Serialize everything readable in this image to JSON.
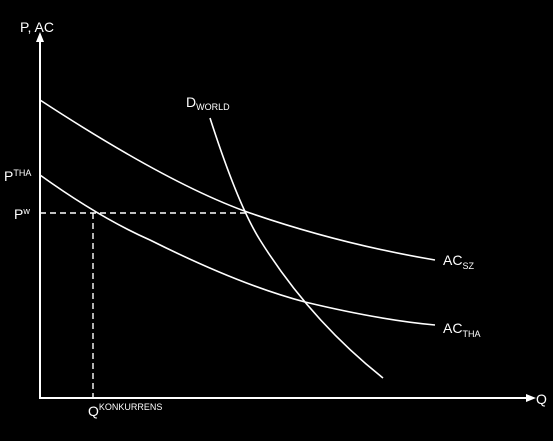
{
  "axes": {
    "y_label": "P, AC",
    "x_label": "Q"
  },
  "labels": {
    "demand": {
      "main": "D",
      "sub": "WORLD"
    },
    "ac_sz": {
      "main": "AC",
      "sub": "SZ"
    },
    "ac_tha": {
      "main": "AC",
      "sub": "THA"
    },
    "p_tha": {
      "main": "P",
      "sup": "THA"
    },
    "p_w": {
      "main": "P",
      "sup": "w"
    },
    "q_konk": {
      "main": "Q",
      "sup": "KONKURRENS"
    }
  }
}
